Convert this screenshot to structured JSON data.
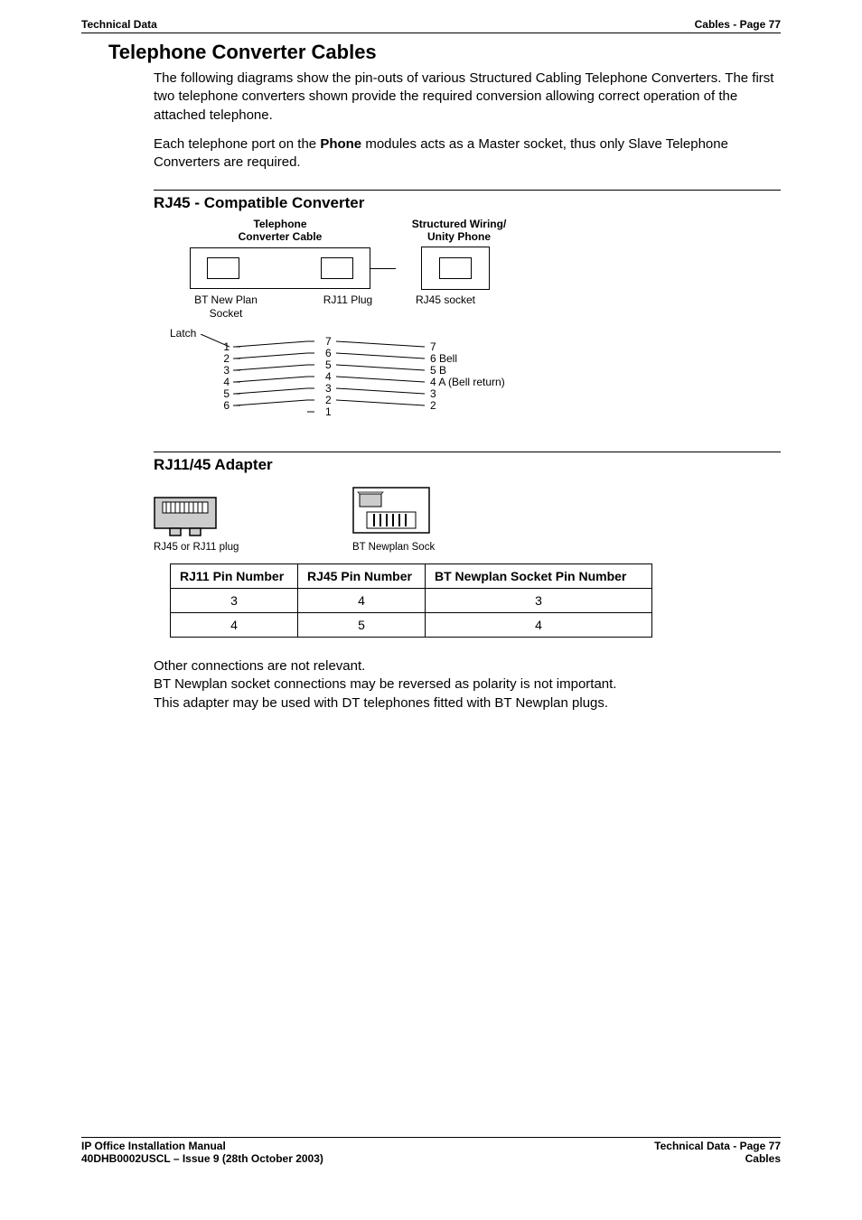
{
  "header": {
    "left": "Technical Data",
    "right": "Cables - Page 77"
  },
  "title": "Telephone Converter Cables",
  "intro1": "The following diagrams show the pin-outs of various Structured Cabling Telephone Converters. The first two telephone converters shown provide the required conversion allowing correct operation of the attached telephone.",
  "intro2_a": "Each telephone port on the ",
  "intro2_bold": "Phone",
  "intro2_b": " modules acts as a Master socket, thus only Slave Telephone Converters are required.",
  "rj45_section": {
    "heading": "RJ45 - Compatible Converter",
    "top_label_left": "Telephone\nConverter Cable",
    "top_label_right": "Structured Wiring/\nUnity Phone",
    "sub_left": "BT New Plan\nSocket",
    "sub_mid": "RJ11\nPlug",
    "sub_right": "RJ45\nsocket",
    "latch": "Latch",
    "left_pins": [
      "1",
      "2",
      "3",
      "4",
      "5",
      "6"
    ],
    "mid_pins": [
      "7",
      "6",
      "5",
      "4",
      "3",
      "2",
      "1"
    ],
    "right_pins": [
      "7",
      "6 Bell",
      "5 B",
      "4 A (Bell return)",
      "3",
      "2"
    ],
    "cross_map": [
      [
        1,
        7
      ],
      [
        2,
        6
      ],
      [
        3,
        5
      ],
      [
        4,
        4
      ],
      [
        5,
        3
      ],
      [
        6,
        2
      ]
    ],
    "straight_map": [
      [
        7,
        7
      ],
      [
        6,
        6
      ],
      [
        5,
        5
      ],
      [
        4,
        4
      ],
      [
        3,
        3
      ],
      [
        2,
        2
      ]
    ]
  },
  "adapter_section": {
    "heading": "RJ11/45 Adapter",
    "cap_left": "RJ45 or RJ11 plug",
    "cap_right": "BT Newplan Sock",
    "table": {
      "headers": [
        "RJ11 Pin Number",
        "RJ45 Pin Number",
        "BT Newplan Socket Pin Number"
      ],
      "rows": [
        [
          "3",
          "4",
          "3"
        ],
        [
          "4",
          "5",
          "4"
        ]
      ]
    },
    "icon_fill": "#cccccc"
  },
  "notes": [
    "Other connections are not relevant.",
    "BT Newplan socket connections may be reversed as polarity is not important.",
    "This adapter may be used with DT telephones fitted with BT Newplan plugs."
  ],
  "footer": {
    "left1": "IP Office Installation Manual",
    "left2": "40DHB0002USCL – Issue 9 (28th October 2003)",
    "right1": "Technical Data - Page 77",
    "right2": "Cables"
  }
}
